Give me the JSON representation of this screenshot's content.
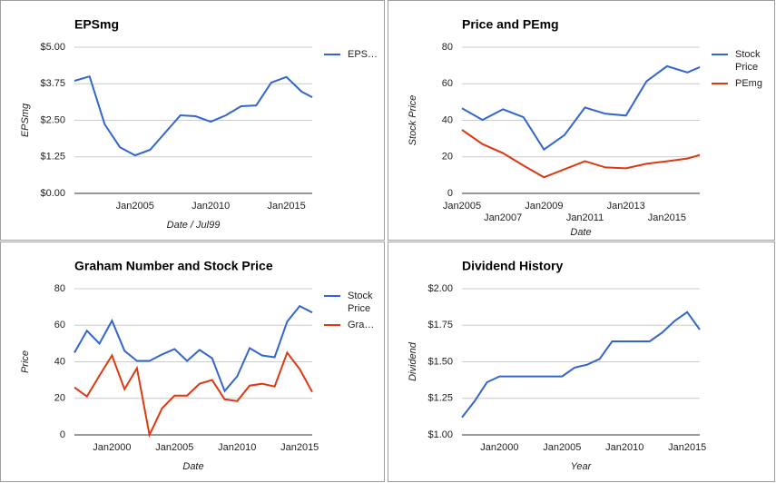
{
  "chart_data": [
    {
      "type": "line",
      "title": "EPSmg",
      "xlabel": "Date / Jul99",
      "ylabel": "EPSmg",
      "grid": true,
      "x": [
        2001,
        2002,
        2003,
        2004,
        2005,
        2006,
        2007,
        2008,
        2009,
        2010,
        2011,
        2012,
        2013,
        2014,
        2015,
        2016,
        2016.7
      ],
      "series": [
        {
          "name": "EPS…",
          "color": "#3366cc",
          "values": [
            3.85,
            4.0,
            2.36,
            1.58,
            1.3,
            1.49,
            2.08,
            2.67,
            2.64,
            2.45,
            2.67,
            2.98,
            3.01,
            3.79,
            3.98,
            3.48,
            3.29
          ]
        }
      ],
      "xlim": [
        2001,
        2016.7
      ],
      "xticks": [
        {
          "value": 2005,
          "label": "Jan2005"
        },
        {
          "value": 2010,
          "label": "Jan2010"
        },
        {
          "value": 2015,
          "label": "Jan2015"
        }
      ],
      "ylim": [
        0,
        5
      ],
      "yticks": [
        {
          "value": 0,
          "label": "$0.00"
        },
        {
          "value": 1.25,
          "label": "$1.25"
        },
        {
          "value": 2.5,
          "label": "$2.50"
        },
        {
          "value": 3.75,
          "label": "$3.75"
        },
        {
          "value": 5,
          "label": "$5.00"
        }
      ]
    },
    {
      "type": "line",
      "title": "Price and PEmg",
      "xlabel": "Date",
      "ylabel": "Stock Price",
      "grid": true,
      "x": [
        2005,
        2006,
        2007,
        2008,
        2009,
        2010,
        2011,
        2012,
        2013,
        2014,
        2015,
        2016,
        2016.6
      ],
      "series": [
        {
          "name": "Stock Price",
          "color": "#3366cc",
          "values": [
            46.6,
            40.2,
            46,
            41.7,
            24,
            31.9,
            47,
            43.6,
            42.6,
            61.3,
            69.6,
            66.2,
            69.1
          ]
        },
        {
          "name": "PEmg",
          "color": "#dc3912",
          "values": [
            34.8,
            27,
            22,
            15.2,
            8.8,
            13.2,
            17.6,
            14.2,
            13.7,
            16.2,
            17.6,
            19.1,
            21
          ]
        }
      ],
      "xlim": [
        2005,
        2016.6
      ],
      "xticks": [
        {
          "value": 2005,
          "label": "Jan2005"
        },
        {
          "value": 2007,
          "label": "Jan2007"
        },
        {
          "value": 2009,
          "label": "Jan2009"
        },
        {
          "value": 2011,
          "label": "Jan2011"
        },
        {
          "value": 2013,
          "label": "Jan2013"
        },
        {
          "value": 2015,
          "label": "Jan2015"
        }
      ],
      "ylim": [
        0,
        80
      ],
      "yticks": [
        0,
        20,
        40,
        60,
        80
      ]
    },
    {
      "type": "line",
      "title": "Graham Number and Stock Price",
      "xlabel": "Date",
      "ylabel": "Price",
      "grid": true,
      "x": [
        1997,
        1998,
        1999,
        2000,
        2001,
        2002,
        2003,
        2004,
        2005,
        2006,
        2007,
        2008,
        2009,
        2010,
        2011,
        2012,
        2013,
        2014,
        2015,
        2016
      ],
      "series": [
        {
          "name": "Stock Price",
          "color": "#3366cc",
          "values": [
            45,
            57,
            50,
            62.5,
            46,
            40.5,
            40.5,
            44,
            47,
            40.5,
            46.5,
            42,
            24,
            32,
            47.5,
            43.5,
            42.5,
            62,
            70.5,
            67
          ]
        },
        {
          "name": "Gra…",
          "color": "#dc3912",
          "values": [
            26,
            21,
            32.5,
            43.5,
            25,
            36.5,
            0,
            14.5,
            21.5,
            21.5,
            28,
            30,
            19.5,
            18.5,
            27,
            28,
            26.5,
            45,
            36,
            23.5
          ]
        }
      ],
      "xlim": [
        1997,
        2016
      ],
      "xticks": [
        {
          "value": 2000,
          "label": "Jan2000"
        },
        {
          "value": 2005,
          "label": "Jan2005"
        },
        {
          "value": 2010,
          "label": "Jan2010"
        },
        {
          "value": 2015,
          "label": "Jan2015"
        }
      ],
      "ylim": [
        0,
        80
      ],
      "yticks": [
        0,
        20,
        40,
        60,
        80
      ]
    },
    {
      "type": "line",
      "title": "Dividend History",
      "xlabel": "Year",
      "ylabel": "Dividend",
      "grid": true,
      "x": [
        1997,
        1998,
        1999,
        2000,
        2001,
        2002,
        2003,
        2004,
        2005,
        2006,
        2007,
        2008,
        2009,
        2010,
        2011,
        2012,
        2013,
        2014,
        2015,
        2016
      ],
      "series": [
        {
          "color": "#3366cc",
          "values": [
            1.12,
            1.23,
            1.36,
            1.4,
            1.4,
            1.4,
            1.4,
            1.4,
            1.4,
            1.46,
            1.48,
            1.52,
            1.64,
            1.64,
            1.64,
            1.64,
            1.7,
            1.78,
            1.84,
            1.72
          ]
        }
      ],
      "xlim": [
        1997,
        2016
      ],
      "xticks": [
        {
          "value": 2000,
          "label": "Jan2000"
        },
        {
          "value": 2005,
          "label": "Jan2005"
        },
        {
          "value": 2010,
          "label": "Jan2010"
        },
        {
          "value": 2015,
          "label": "Jan2015"
        }
      ],
      "ylim": [
        1,
        2
      ],
      "yticks": [
        {
          "value": 1,
          "label": "$1.00"
        },
        {
          "value": 1.25,
          "label": "$1.25"
        },
        {
          "value": 1.5,
          "label": "$1.50"
        },
        {
          "value": 1.75,
          "label": "$1.75"
        },
        {
          "value": 2,
          "label": "$2.00"
        }
      ]
    }
  ]
}
